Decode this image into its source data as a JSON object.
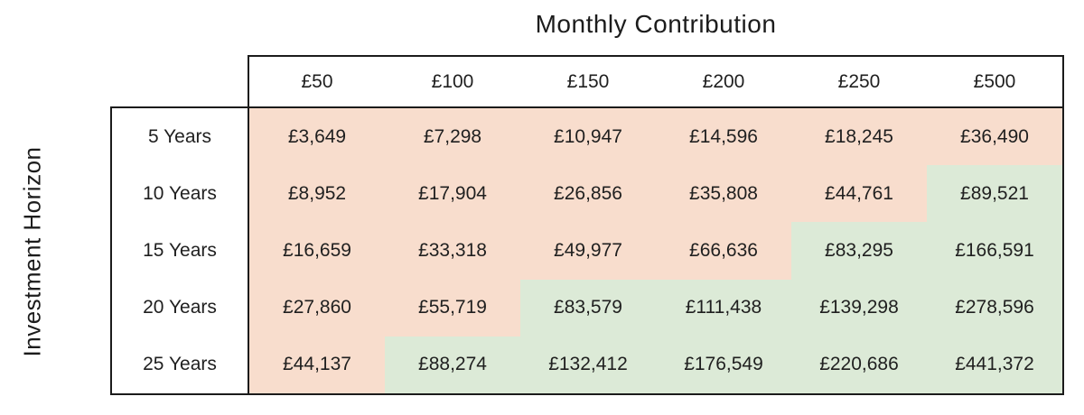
{
  "title": "Monthly Contribution",
  "y_axis_label": "Investment Horizon",
  "columns": [
    "£50",
    "£100",
    "£150",
    "£200",
    "£250",
    "£500"
  ],
  "rows": [
    {
      "label": "5 Years",
      "values": [
        "£3,649",
        "£7,298",
        "£10,947",
        "£14,596",
        "£18,245",
        "£36,490"
      ],
      "colors": [
        "peach",
        "peach",
        "peach",
        "peach",
        "peach",
        "peach"
      ]
    },
    {
      "label": "10 Years",
      "values": [
        "£8,952",
        "£17,904",
        "£26,856",
        "£35,808",
        "£44,761",
        "£89,521"
      ],
      "colors": [
        "peach",
        "peach",
        "peach",
        "peach",
        "peach",
        "green"
      ]
    },
    {
      "label": "15 Years",
      "values": [
        "£16,659",
        "£33,318",
        "£49,977",
        "£66,636",
        "£83,295",
        "£166,591"
      ],
      "colors": [
        "peach",
        "peach",
        "peach",
        "peach",
        "green",
        "green"
      ]
    },
    {
      "label": "20 Years",
      "values": [
        "£27,860",
        "£55,719",
        "£83,579",
        "£111,438",
        "£139,298",
        "£278,596"
      ],
      "colors": [
        "peach",
        "peach",
        "green",
        "green",
        "green",
        "green"
      ]
    },
    {
      "label": "25 Years",
      "values": [
        "£44,137",
        "£88,274",
        "£132,412",
        "£176,549",
        "£220,686",
        "£441,372"
      ],
      "colors": [
        "peach",
        "green",
        "green",
        "green",
        "green",
        "green"
      ]
    }
  ],
  "theme": {
    "peach": "#f8ddcd",
    "green": "#dcead7",
    "border": "#1b1b1b",
    "text": "#1f1f1f",
    "background": "#ffffff"
  },
  "chart_data": {
    "type": "table",
    "title": "Monthly Contribution",
    "column_axis_label": "Monthly Contribution",
    "row_axis_label": "Investment Horizon",
    "columns": [
      "£50",
      "£100",
      "£150",
      "£200",
      "£250",
      "£500"
    ],
    "row_labels": [
      "5 Years",
      "10 Years",
      "15 Years",
      "20 Years",
      "25 Years"
    ],
    "values": [
      [
        3649,
        7298,
        10947,
        14596,
        18245,
        36490
      ],
      [
        8952,
        17904,
        26856,
        35808,
        44761,
        89521
      ],
      [
        16659,
        33318,
        49977,
        66636,
        83295,
        166591
      ],
      [
        27860,
        55719,
        83579,
        111438,
        139298,
        278596
      ],
      [
        44137,
        88274,
        132412,
        176549,
        220686,
        441372
      ]
    ],
    "cell_color_key": [
      [
        "peach",
        "peach",
        "peach",
        "peach",
        "peach",
        "peach"
      ],
      [
        "peach",
        "peach",
        "peach",
        "peach",
        "peach",
        "green"
      ],
      [
        "peach",
        "peach",
        "peach",
        "peach",
        "green",
        "green"
      ],
      [
        "peach",
        "peach",
        "green",
        "green",
        "green",
        "green"
      ],
      [
        "peach",
        "green",
        "green",
        "green",
        "green",
        "green"
      ]
    ],
    "legend_position": "none",
    "grid": false
  }
}
